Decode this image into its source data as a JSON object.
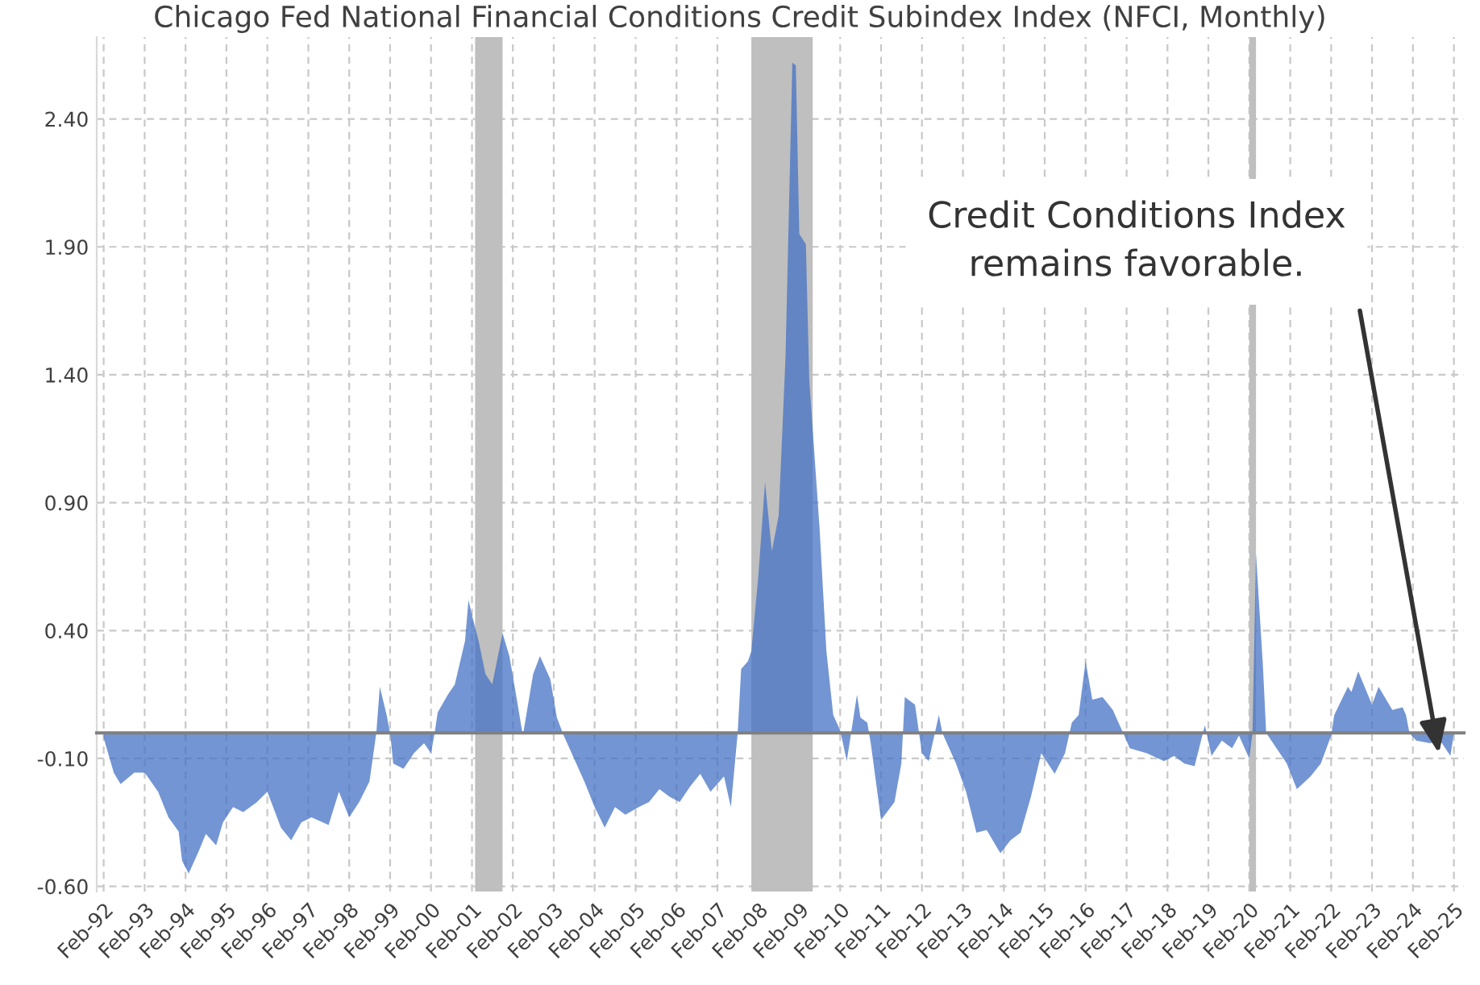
{
  "chart_data": {
    "type": "area",
    "title": "Chicago Fed National Financial Conditions Credit Subindex Index (NFCI, Monthly)",
    "x": [
      "1992-02",
      "1992-05",
      "1992-07",
      "1992-11",
      "1993-02",
      "1993-06",
      "1993-09",
      "1993-12",
      "1994-01",
      "1994-03",
      "1994-06",
      "1994-08",
      "1994-11",
      "1995-01",
      "1995-04",
      "1995-07",
      "1995-11",
      "1996-02",
      "1996-06",
      "1996-09",
      "1996-12",
      "1997-03",
      "1997-08",
      "1997-11",
      "1998-02",
      "1998-05",
      "1998-08",
      "1998-10",
      "1998-11",
      "1999-01",
      "1999-02",
      "1999-03",
      "1999-06",
      "1999-09",
      "1999-12",
      "2000-02",
      "2000-03",
      "2000-04",
      "2000-07",
      "2000-09",
      "2000-12",
      "2001-01",
      "2001-02",
      "2001-04",
      "2001-06",
      "2001-08",
      "2001-11",
      "2002-01",
      "2002-03",
      "2002-05",
      "2002-06",
      "2002-08",
      "2002-10",
      "2003-01",
      "2003-03",
      "2003-05",
      "2003-08",
      "2003-11",
      "2004-02",
      "2004-05",
      "2004-08",
      "2004-11",
      "2005-03",
      "2005-06",
      "2005-09",
      "2005-12",
      "2006-03",
      "2006-06",
      "2006-09",
      "2006-12",
      "2007-04",
      "2007-06",
      "2007-08",
      "2007-09",
      "2007-11",
      "2007-12",
      "2008-02",
      "2008-04",
      "2008-06",
      "2008-08",
      "2008-10",
      "2008-12",
      "2009-01",
      "2009-02",
      "2009-04",
      "2009-05",
      "2009-08",
      "2009-10",
      "2009-12",
      "2010-02",
      "2010-04",
      "2010-07",
      "2010-08",
      "2010-10",
      "2010-11",
      "2011-02",
      "2011-06",
      "2011-08",
      "2011-09",
      "2011-12",
      "2012-02",
      "2012-04",
      "2012-07",
      "2012-08",
      "2012-12",
      "2013-03",
      "2013-06",
      "2013-09",
      "2014-01",
      "2014-04",
      "2014-07",
      "2014-10",
      "2015-01",
      "2015-05",
      "2015-08",
      "2015-10",
      "2015-12",
      "2016-02",
      "2016-04",
      "2016-07",
      "2016-10",
      "2017-01",
      "2017-03",
      "2017-08",
      "2018-01",
      "2018-04",
      "2018-07",
      "2018-10",
      "2019-01",
      "2019-03",
      "2019-06",
      "2019-09",
      "2019-11",
      "2020-02",
      "2020-03",
      "2020-04",
      "2020-06",
      "2020-07",
      "2020-09",
      "2021-01",
      "2021-04",
      "2021-08",
      "2021-11",
      "2022-02",
      "2022-03",
      "2022-07",
      "2022-08",
      "2022-10",
      "2023-02",
      "2023-04",
      "2023-08",
      "2023-11",
      "2023-12",
      "2024-01",
      "2024-03",
      "2024-07",
      "2024-10",
      "2025-01",
      "2025-02"
    ],
    "series": [
      {
        "color": "#4472c4",
        "values": [
          -0.02,
          -0.155,
          -0.2,
          -0.155,
          -0.155,
          -0.23,
          -0.33,
          -0.385,
          -0.5,
          -0.55,
          -0.46,
          -0.395,
          -0.44,
          -0.35,
          -0.29,
          -0.31,
          -0.27,
          -0.23,
          -0.37,
          -0.42,
          -0.35,
          -0.33,
          -0.36,
          -0.23,
          -0.33,
          -0.27,
          -0.19,
          0.0,
          0.18,
          0.07,
          0.0,
          -0.12,
          -0.14,
          -0.08,
          -0.04,
          -0.08,
          -0.01,
          0.08,
          0.15,
          0.19,
          0.36,
          0.52,
          0.46,
          0.36,
          0.23,
          0.19,
          0.39,
          0.3,
          0.15,
          -0.01,
          0.07,
          0.23,
          0.3,
          0.21,
          0.06,
          -0.01,
          -0.1,
          -0.19,
          -0.29,
          -0.37,
          -0.29,
          -0.32,
          -0.29,
          -0.27,
          -0.22,
          -0.25,
          -0.27,
          -0.21,
          -0.16,
          -0.23,
          -0.17,
          -0.29,
          0.0,
          0.25,
          0.28,
          0.32,
          0.61,
          0.98,
          0.71,
          0.85,
          1.47,
          2.62,
          2.61,
          1.95,
          1.91,
          1.38,
          0.8,
          0.32,
          0.07,
          0.01,
          -0.11,
          0.15,
          0.06,
          0.04,
          -0.04,
          -0.34,
          -0.27,
          -0.12,
          0.14,
          0.11,
          -0.08,
          -0.11,
          0.07,
          0.0,
          -0.12,
          -0.23,
          -0.39,
          -0.38,
          -0.47,
          -0.42,
          -0.39,
          -0.25,
          -0.08,
          -0.16,
          -0.08,
          0.04,
          0.07,
          0.28,
          0.13,
          0.14,
          0.09,
          0.0,
          -0.06,
          -0.08,
          -0.11,
          -0.09,
          -0.12,
          -0.13,
          0.03,
          -0.09,
          -0.03,
          -0.06,
          -0.01,
          -0.1,
          0.0,
          0.7,
          0.27,
          0.0,
          -0.04,
          -0.12,
          -0.22,
          -0.17,
          -0.12,
          -0.01,
          0.07,
          0.18,
          0.16,
          0.24,
          0.11,
          0.18,
          0.09,
          0.1,
          0.07,
          0.0,
          -0.03,
          -0.04,
          -0.03,
          -0.09,
          0.0
        ]
      }
    ],
    "xlim": [
      "1991-12",
      "2025-05"
    ],
    "xticks": [
      {
        "value": "1992-02",
        "label": "Feb-92"
      },
      {
        "value": "1993-02",
        "label": "Feb-93"
      },
      {
        "value": "1994-02",
        "label": "Feb-94"
      },
      {
        "value": "1995-02",
        "label": "Feb-95"
      },
      {
        "value": "1996-02",
        "label": "Feb-96"
      },
      {
        "value": "1997-02",
        "label": "Feb-97"
      },
      {
        "value": "1998-02",
        "label": "Feb-98"
      },
      {
        "value": "1999-02",
        "label": "Feb-99"
      },
      {
        "value": "2000-02",
        "label": "Feb-00"
      },
      {
        "value": "2001-02",
        "label": "Feb-01"
      },
      {
        "value": "2002-02",
        "label": "Feb-02"
      },
      {
        "value": "2003-02",
        "label": "Feb-03"
      },
      {
        "value": "2004-02",
        "label": "Feb-04"
      },
      {
        "value": "2005-02",
        "label": "Feb-05"
      },
      {
        "value": "2006-02",
        "label": "Feb-06"
      },
      {
        "value": "2007-02",
        "label": "Feb-07"
      },
      {
        "value": "2008-02",
        "label": "Feb-08"
      },
      {
        "value": "2009-02",
        "label": "Feb-09"
      },
      {
        "value": "2010-02",
        "label": "Feb-10"
      },
      {
        "value": "2011-02",
        "label": "Feb-11"
      },
      {
        "value": "2012-02",
        "label": "Feb-12"
      },
      {
        "value": "2013-02",
        "label": "Feb-13"
      },
      {
        "value": "2014-02",
        "label": "Feb-14"
      },
      {
        "value": "2015-02",
        "label": "Feb-15"
      },
      {
        "value": "2016-02",
        "label": "Feb-16"
      },
      {
        "value": "2017-02",
        "label": "Feb-17"
      },
      {
        "value": "2018-02",
        "label": "Feb-18"
      },
      {
        "value": "2019-02",
        "label": "Feb-19"
      },
      {
        "value": "2020-02",
        "label": "Feb-20"
      },
      {
        "value": "2021-02",
        "label": "Feb-21"
      },
      {
        "value": "2022-02",
        "label": "Feb-22"
      },
      {
        "value": "2023-02",
        "label": "Feb-23"
      },
      {
        "value": "2024-02",
        "label": "Feb-24"
      },
      {
        "value": "2025-02",
        "label": "Feb-25"
      }
    ],
    "ylim": [
      -0.62,
      2.72
    ],
    "yticks": [
      {
        "value": -0.6,
        "label": "-0.60"
      },
      {
        "value": -0.1,
        "label": "-0.10"
      },
      {
        "value": 0.4,
        "label": "0.40"
      },
      {
        "value": 0.9,
        "label": "0.90"
      },
      {
        "value": 1.4,
        "label": "1.40"
      },
      {
        "value": 1.9,
        "label": "1.90"
      },
      {
        "value": 2.4,
        "label": "2.40"
      }
    ],
    "bands": [
      {
        "axis": "x",
        "from": "2001-03",
        "to": "2001-11",
        "color": "#bfbfbf"
      },
      {
        "axis": "x",
        "from": "2007-12",
        "to": "2009-06",
        "color": "#bfbfbf"
      },
      {
        "axis": "x",
        "from": "2020-02",
        "to": "2020-04",
        "color": "#bfbfbf"
      }
    ],
    "annotations": [
      "Credit Conditions Index\nremains favorable."
    ],
    "grid": true
  }
}
